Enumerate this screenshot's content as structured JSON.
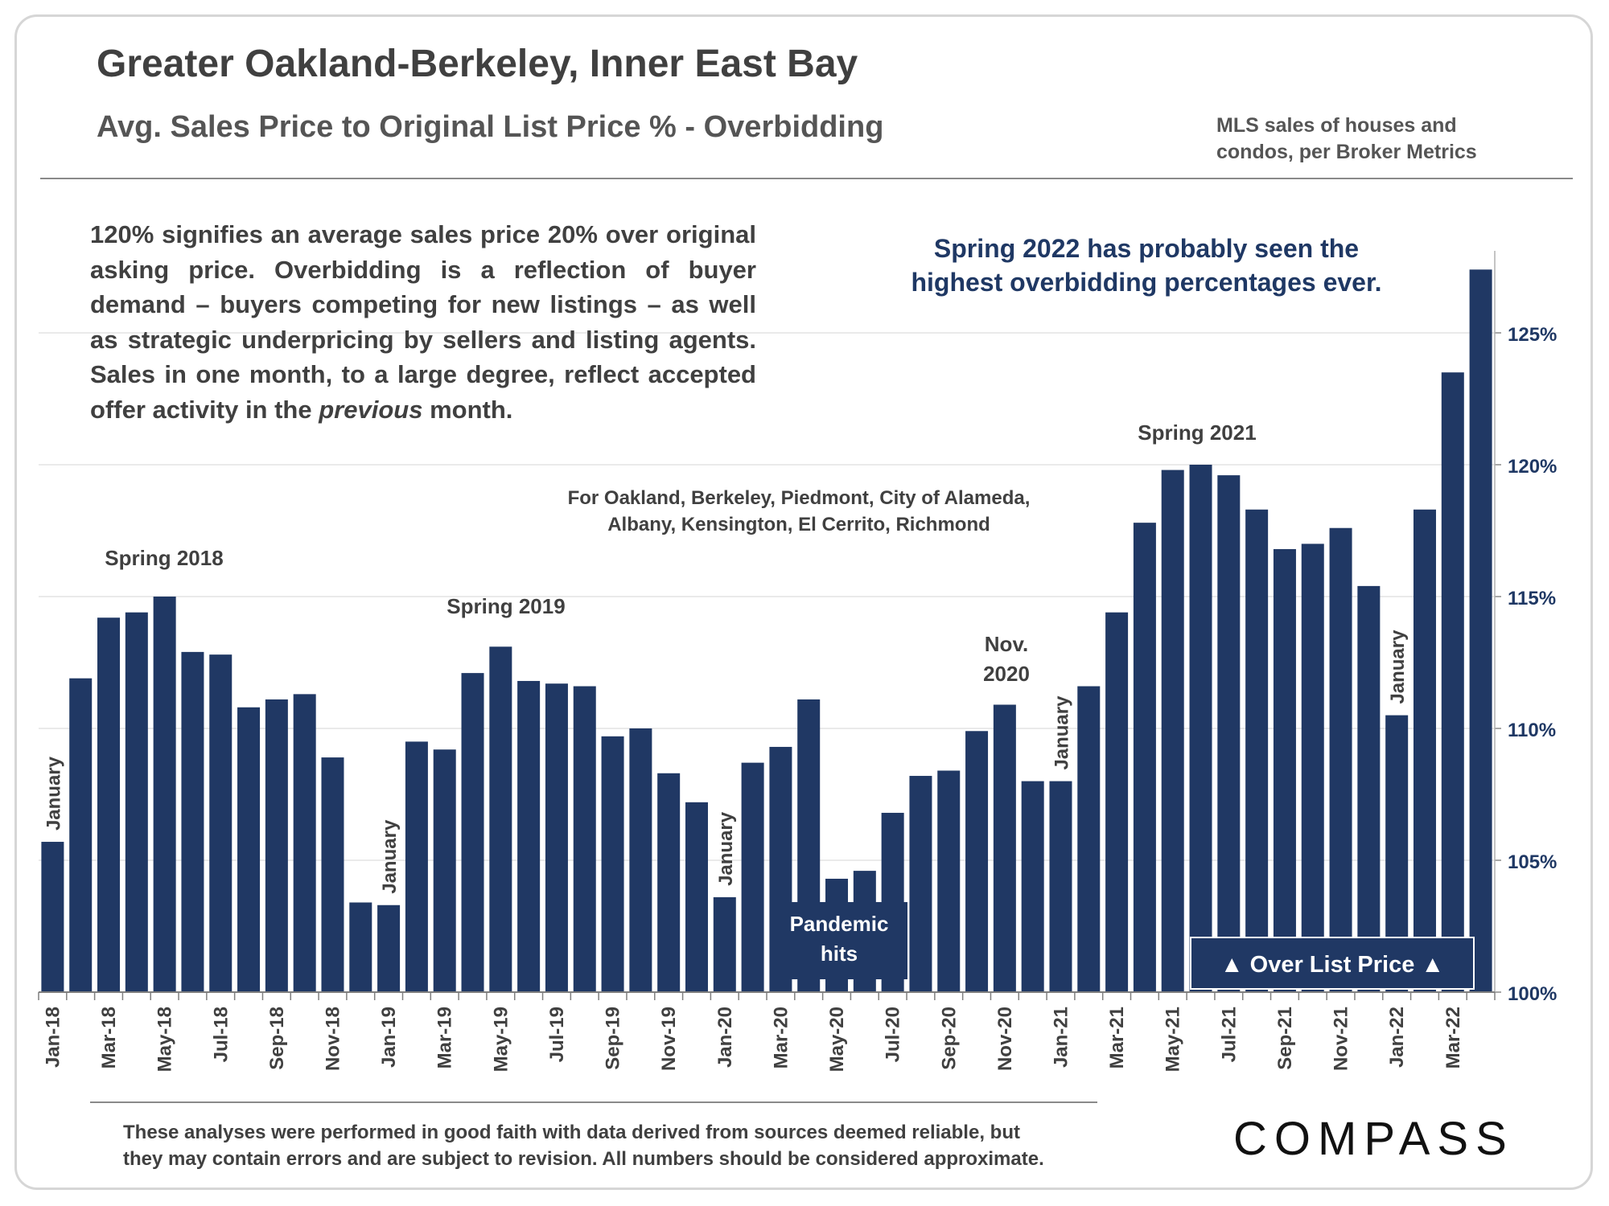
{
  "header": {
    "title": "Greater Oakland-Berkeley, Inner East Bay",
    "subtitle": "Avg. Sales Price to Original List Price % - Overbidding",
    "source_lines": [
      "MLS sales of houses and",
      "condos, per Broker Metrics"
    ]
  },
  "description": {
    "lines": [
      "120% signifies an average sales price 20% over original",
      "asking price.  Overbidding is a reflection of buyer",
      "demand – buyers competing for new listings – as well",
      "as strategic underpricing by sellers and listing agents.",
      "Sales in one month, to a large degree, reflect accepted"
    ],
    "last_before": "offer activity in the ",
    "last_italic": "previous",
    "last_after": " month."
  },
  "callout": {
    "lines": [
      "Spring 2022 has probably seen the",
      "highest overbidding percentages ever."
    ]
  },
  "footer": {
    "lines": [
      "These analyses were performed in good faith with data derived from sources deemed reliable, but",
      "they may contain errors and are subject to revision. All numbers should be considered  approximate."
    ],
    "logo_text": "COMPASS"
  },
  "chart_data": {
    "type": "bar",
    "bar_color": "#203864",
    "grid": true,
    "ylim": [
      100,
      127.5
    ],
    "yticks": [
      100,
      105,
      110,
      115,
      120,
      125
    ],
    "ytick_labels": [
      "100%",
      "105%",
      "110%",
      "115%",
      "120%",
      "125%"
    ],
    "y_axis_position": "right",
    "categories": [
      "Jan-18",
      "Feb-18",
      "Mar-18",
      "Apr-18",
      "May-18",
      "Jun-18",
      "Jul-18",
      "Aug-18",
      "Sep-18",
      "Oct-18",
      "Nov-18",
      "Dec-18",
      "Jan-19",
      "Feb-19",
      "Mar-19",
      "Apr-19",
      "May-19",
      "Jun-19",
      "Jul-19",
      "Aug-19",
      "Sep-19",
      "Oct-19",
      "Nov-19",
      "Dec-19",
      "Jan-20",
      "Feb-20",
      "Mar-20",
      "Apr-20",
      "May-20",
      "Jun-20",
      "Jul-20",
      "Aug-20",
      "Sep-20",
      "Oct-20",
      "Nov-20",
      "Dec-20",
      "Jan-21",
      "Feb-21",
      "Mar-21",
      "Apr-21",
      "May-21",
      "Jun-21",
      "Jul-21",
      "Aug-21",
      "Sep-21",
      "Oct-21",
      "Nov-21",
      "Dec-21",
      "Jan-22",
      "Feb-22",
      "Mar-22",
      "Apr-22"
    ],
    "tick_labels": [
      "Jan-18",
      "",
      "Mar-18",
      "",
      "May-18",
      "",
      "Jul-18",
      "",
      "Sep-18",
      "",
      "Nov-18",
      "",
      "Jan-19",
      "",
      "Mar-19",
      "",
      "May-19",
      "",
      "Jul-19",
      "",
      "Sep-19",
      "",
      "Nov-19",
      "",
      "Jan-20",
      "",
      "Mar-20",
      "",
      "May-20",
      "",
      "Jul-20",
      "",
      "Sep-20",
      "",
      "Nov-20",
      "",
      "Jan-21",
      "",
      "Mar-21",
      "",
      "May-21",
      "",
      "Jul-21",
      "",
      "Sep-21",
      "",
      "Nov-21",
      "",
      "Jan-22",
      "",
      "Mar-22",
      ""
    ],
    "values": [
      105.7,
      111.9,
      114.2,
      114.4,
      115.0,
      112.9,
      112.8,
      110.8,
      111.1,
      111.3,
      108.9,
      103.4,
      103.3,
      109.5,
      109.2,
      112.1,
      113.1,
      111.8,
      111.7,
      111.6,
      109.7,
      110.0,
      108.3,
      107.2,
      103.6,
      108.7,
      109.3,
      111.1,
      104.3,
      104.6,
      106.8,
      108.2,
      108.4,
      109.9,
      110.9,
      108.0,
      108.0,
      111.6,
      114.4,
      117.8,
      119.8,
      120.0,
      119.6,
      118.3,
      116.8,
      117.0,
      117.6,
      115.4,
      110.5,
      118.3,
      123.5,
      127.4
    ],
    "annotations": {
      "spring_2018": "Spring 2018",
      "spring_2019": "Spring 2019",
      "spring_2021": "Spring 2021",
      "nov_2020_line1": "Nov.",
      "nov_2020_line2": "2020",
      "january": "January",
      "cities_line1": "For Oakland, Berkeley, Piedmont, City of Alameda,",
      "cities_line2": "Albany, Kensington, El Cerrito, Richmond",
      "pandemic_line1": "Pandemic",
      "pandemic_line2": "hits",
      "over_list_price": "▲ Over List Price ▲"
    }
  }
}
